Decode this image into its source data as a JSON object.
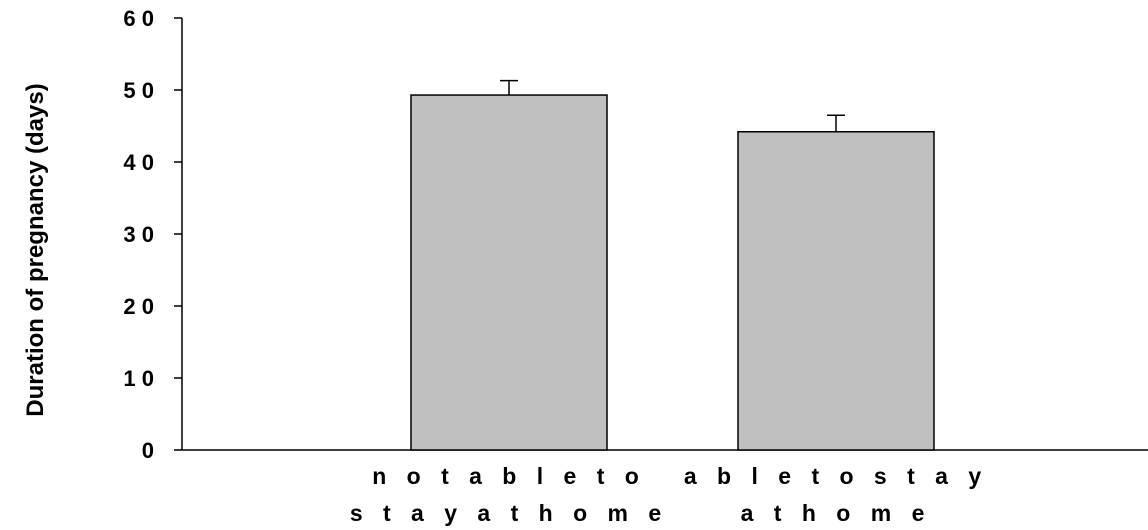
{
  "chart_data": {
    "type": "bar",
    "title": "",
    "xlabel": "",
    "ylabel": "Duration of pregnancy (days)",
    "ylim": [
      0,
      60
    ],
    "yticks": [
      0,
      10,
      20,
      30,
      40,
      50,
      60
    ],
    "ytick_labels": [
      "0",
      "1 0",
      "2 0",
      "3 0",
      "4 0",
      "5 0",
      "6 0"
    ],
    "categories": [
      [
        "n o t  a b l e  t o",
        "s t a y  a t  h o m e"
      ],
      [
        "a b l e  t o  s t a y",
        "a t  h o m e"
      ]
    ],
    "values": [
      49.3,
      44.2
    ],
    "errors": [
      2.0,
      2.3
    ],
    "bar_color": "#c0c0c0",
    "edge_color": "#000000",
    "grid": false,
    "legend": "none"
  }
}
